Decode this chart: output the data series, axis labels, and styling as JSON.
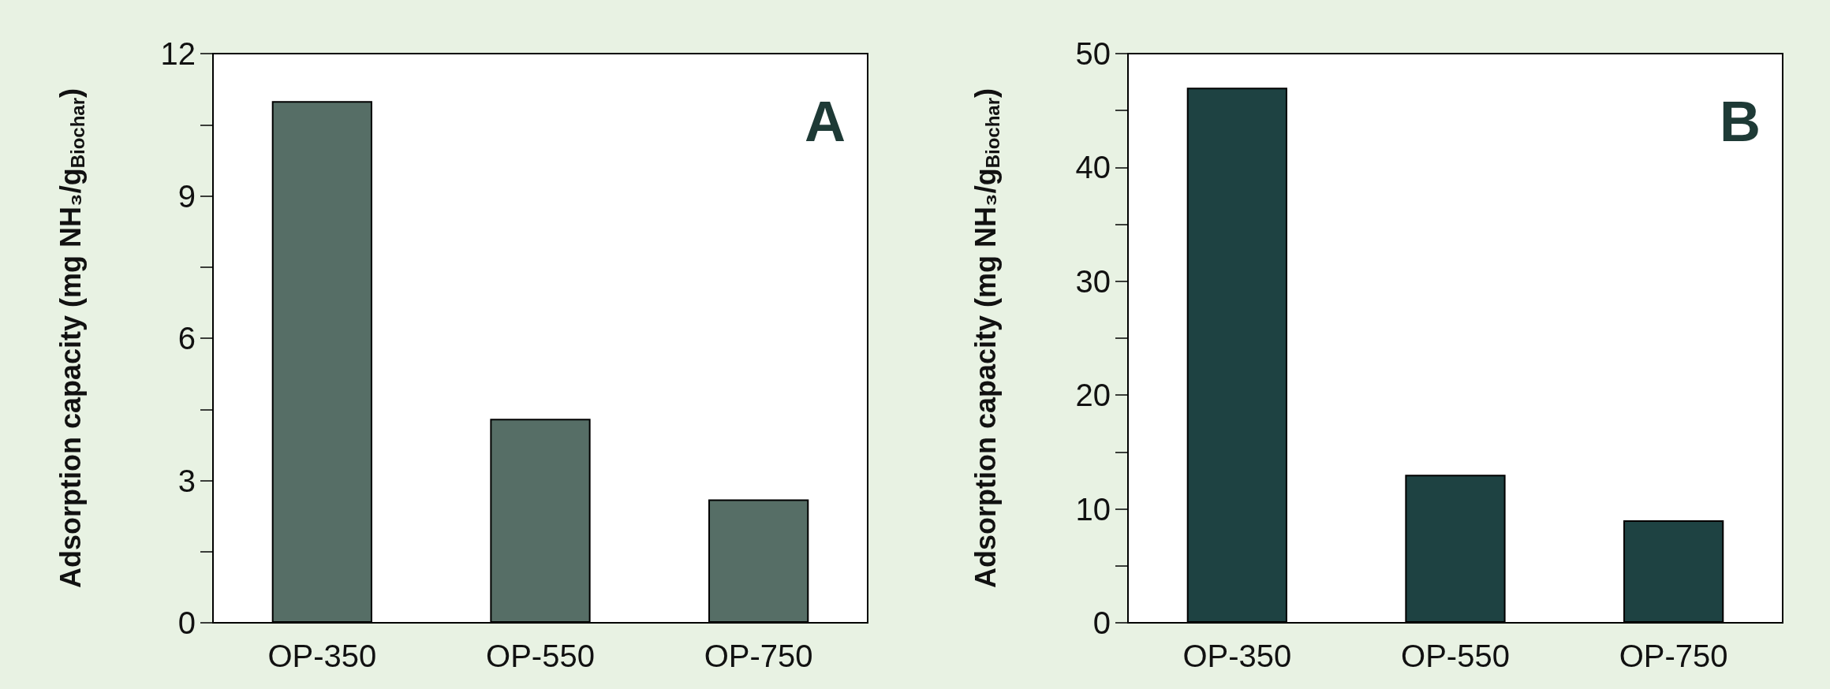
{
  "chart_data": [
    {
      "type": "bar",
      "categories": [
        "OP-350",
        "OP-550",
        "OP-750"
      ],
      "values": [
        11.0,
        4.3,
        2.6
      ],
      "color": "#566e66",
      "ylabel": "Adsorption capacity (mg NH₃/g$_{Biochar}$)",
      "ylim": [
        0,
        12
      ],
      "yticks": [
        0,
        {
          "value": 1.5,
          "label": null
        },
        3,
        {
          "value": 4.5,
          "label": null
        },
        6,
        {
          "value": 7.5,
          "label": null
        },
        9,
        {
          "value": 10.5,
          "label": null
        },
        12
      ],
      "annotations": [
        "A"
      ],
      "grid": false
    },
    {
      "type": "bar",
      "categories": [
        "OP-350",
        "OP-550",
        "OP-750"
      ],
      "values": [
        47,
        13,
        9
      ],
      "color": "#1e4242",
      "ylabel": "Adsorption capacity (mg NH₃/g$_{Biochar}$)",
      "ylim": [
        0,
        50
      ],
      "yticks": [
        0,
        {
          "value": 5,
          "label": null
        },
        10,
        {
          "value": 15,
          "label": null
        },
        20,
        {
          "value": 25,
          "label": null
        },
        30,
        {
          "value": 35,
          "label": null
        },
        40,
        {
          "value": 45,
          "label": null
        },
        50
      ],
      "annotations": [
        "B"
      ],
      "grid": false
    }
  ]
}
